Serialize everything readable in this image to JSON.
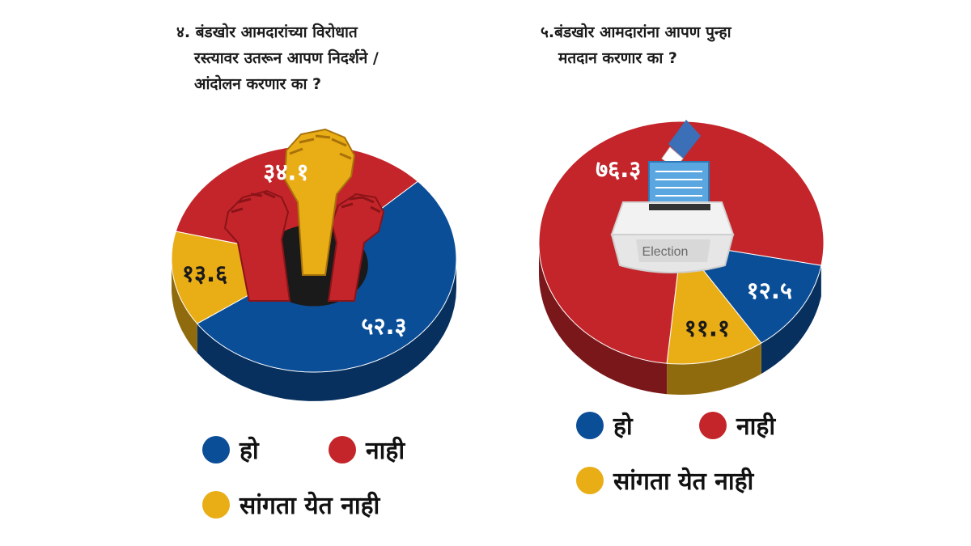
{
  "colors": {
    "yes": "#0b4e98",
    "no": "#c4252a",
    "cant_say": "#e9ad16"
  },
  "legend": [
    {
      "key": "yes",
      "label": "हो",
      "color": "#0b4e98"
    },
    {
      "key": "no",
      "label": "नाही",
      "color": "#c4252a"
    },
    {
      "key": "cant_say",
      "label": "सांगता येत नाही",
      "color": "#e9ad16"
    }
  ],
  "illustrations": {
    "chart1": "raised-fists-icon",
    "chart2": "ballot-box-icon",
    "chart2_box_label": "Election"
  },
  "chart_data": [
    {
      "type": "pie",
      "style": "3d-donut",
      "title_lines": [
        "४. बंडखोर आमदारांच्या विरोधात",
        "रस्त्यावर उतरून आपण निदर्शने /",
        "आंदोलन करणार का ?"
      ],
      "slices": [
        {
          "key": "yes",
          "name": "हो",
          "value": 52.3,
          "label": "५२.३",
          "color": "#0b4e98"
        },
        {
          "key": "cant_say",
          "name": "सांगता येत नाही",
          "value": 13.6,
          "label": "१३.६",
          "color": "#e9ad16"
        },
        {
          "key": "no",
          "name": "नाही",
          "value": 34.1,
          "label": "३४.१",
          "color": "#c4252a"
        }
      ]
    },
    {
      "type": "pie",
      "style": "3d",
      "title_lines": [
        "५.बंडखोर आमदारांना आपण पुन्हा",
        "मतदान करणार का ?"
      ],
      "slices": [
        {
          "key": "yes",
          "name": "हो",
          "value": 12.5,
          "label": "१२.५",
          "color": "#0b4e98"
        },
        {
          "key": "cant_say",
          "name": "सांगता येत नाही",
          "value": 11.1,
          "label": "११.१",
          "color": "#e9ad16"
        },
        {
          "key": "no",
          "name": "नाही",
          "value": 76.3,
          "label": "७६.३",
          "color": "#c4252a"
        }
      ]
    }
  ]
}
